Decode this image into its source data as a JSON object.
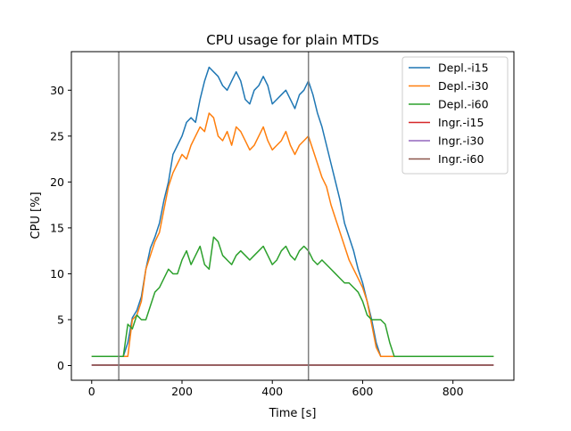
{
  "chart_data": {
    "type": "line",
    "title": "CPU usage for plain MTDs",
    "xlabel": "Time [s]",
    "ylabel": "CPU [%]",
    "xlim": [
      -45,
      935
    ],
    "ylim": [
      -1.6,
      34.2
    ],
    "xticks": [
      0,
      200,
      400,
      600,
      800
    ],
    "yticks": [
      0,
      5,
      10,
      15,
      20,
      25,
      30
    ],
    "xtick_labels": [
      "0",
      "200",
      "400",
      "600",
      "800"
    ],
    "ytick_labels": [
      "0",
      "5",
      "10",
      "15",
      "20",
      "25",
      "30"
    ],
    "vertical_lines": [
      60,
      480
    ],
    "vertical_line_color": "#808080",
    "grid": false,
    "legend_position": "top-right",
    "x": [
      0,
      10,
      20,
      30,
      40,
      50,
      60,
      70,
      80,
      90,
      100,
      110,
      120,
      130,
      140,
      150,
      160,
      170,
      180,
      190,
      200,
      210,
      220,
      230,
      240,
      250,
      260,
      270,
      280,
      290,
      300,
      310,
      320,
      330,
      340,
      350,
      360,
      370,
      380,
      390,
      400,
      410,
      420,
      430,
      440,
      450,
      460,
      470,
      480,
      490,
      500,
      510,
      520,
      530,
      540,
      550,
      560,
      570,
      580,
      590,
      600,
      610,
      620,
      630,
      640,
      650,
      660,
      670,
      680,
      690,
      700,
      710,
      720,
      730,
      740,
      750,
      760,
      770,
      780,
      790,
      800,
      810,
      820,
      830,
      840,
      850,
      860,
      870,
      880,
      890
    ],
    "series": [
      {
        "name": "Depl.-i15",
        "color": "#1f77b4",
        "values": [
          1.0,
          1.0,
          1.0,
          1.0,
          1.0,
          1.0,
          1.0,
          1.0,
          2.5,
          5.2,
          6.0,
          7.5,
          10.5,
          12.8,
          14.0,
          15.5,
          18.0,
          20.0,
          23.0,
          24.0,
          25.0,
          26.5,
          27.0,
          26.5,
          29.0,
          31.0,
          32.5,
          32.0,
          31.5,
          30.5,
          30.0,
          31.0,
          32.0,
          31.0,
          29.0,
          28.5,
          30.0,
          30.5,
          31.5,
          30.5,
          28.5,
          29.0,
          29.5,
          30.0,
          29.0,
          28.0,
          29.5,
          30.0,
          31.0,
          29.5,
          27.5,
          26.0,
          24.0,
          22.0,
          20.0,
          18.0,
          15.5,
          14.0,
          12.5,
          10.5,
          9.0,
          7.0,
          5.0,
          2.5,
          1.0,
          1.0,
          1.0,
          1.0,
          1.0,
          1.0,
          1.0,
          1.0,
          1.0,
          1.0,
          1.0,
          1.0,
          1.0,
          1.0,
          1.0,
          1.0,
          1.0,
          1.0,
          1.0,
          1.0,
          1.0,
          1.0,
          1.0,
          1.0,
          1.0,
          1.0
        ]
      },
      {
        "name": "Depl.-i30",
        "color": "#ff7f0e",
        "values": [
          1.0,
          1.0,
          1.0,
          1.0,
          1.0,
          1.0,
          1.0,
          1.0,
          1.0,
          5.0,
          5.5,
          7.0,
          10.5,
          12.0,
          13.5,
          14.5,
          17.0,
          19.5,
          21.0,
          22.0,
          23.0,
          22.5,
          24.0,
          25.0,
          26.0,
          25.5,
          27.5,
          27.0,
          25.0,
          24.5,
          25.5,
          24.0,
          26.0,
          25.5,
          24.5,
          23.5,
          24.0,
          25.0,
          26.0,
          24.5,
          23.5,
          24.0,
          24.5,
          25.5,
          24.0,
          23.0,
          24.0,
          24.5,
          25.0,
          23.5,
          22.0,
          20.5,
          19.5,
          17.5,
          16.0,
          14.5,
          13.0,
          11.5,
          10.5,
          9.5,
          8.5,
          7.0,
          4.5,
          2.0,
          1.0,
          1.0,
          1.0,
          1.0,
          1.0,
          1.0,
          1.0,
          1.0,
          1.0,
          1.0,
          1.0,
          1.0,
          1.0,
          1.0,
          1.0,
          1.0,
          1.0,
          1.0,
          1.0,
          1.0,
          1.0,
          1.0,
          1.0,
          1.0,
          1.0,
          1.0
        ]
      },
      {
        "name": "Depl.-i60",
        "color": "#2ca02c",
        "values": [
          1.0,
          1.0,
          1.0,
          1.0,
          1.0,
          1.0,
          1.0,
          1.0,
          4.5,
          4.0,
          5.5,
          5.0,
          5.0,
          6.5,
          8.0,
          8.5,
          9.5,
          10.5,
          10.0,
          10.0,
          11.5,
          12.5,
          11.0,
          12.0,
          13.0,
          11.0,
          10.5,
          14.0,
          13.5,
          12.0,
          11.5,
          11.0,
          12.0,
          12.5,
          12.0,
          11.5,
          12.0,
          12.5,
          13.0,
          12.0,
          11.0,
          11.5,
          12.5,
          13.0,
          12.0,
          11.5,
          12.5,
          13.0,
          12.5,
          11.5,
          11.0,
          11.5,
          11.0,
          10.5,
          10.0,
          9.5,
          9.0,
          9.0,
          8.5,
          8.0,
          7.0,
          5.5,
          5.0,
          5.0,
          5.0,
          4.5,
          2.5,
          1.0,
          1.0,
          1.0,
          1.0,
          1.0,
          1.0,
          1.0,
          1.0,
          1.0,
          1.0,
          1.0,
          1.0,
          1.0,
          1.0,
          1.0,
          1.0,
          1.0,
          1.0,
          1.0,
          1.0,
          1.0,
          1.0,
          1.0
        ]
      },
      {
        "name": "Ingr.-i15",
        "color": "#d62728",
        "values": [
          0.05,
          0.05,
          0.05,
          0.05,
          0.05,
          0.05,
          0.05,
          0.05,
          0.05,
          0.05,
          0.05,
          0.05,
          0.05,
          0.05,
          0.05,
          0.05,
          0.05,
          0.05,
          0.05,
          0.05,
          0.05,
          0.05,
          0.05,
          0.05,
          0.05,
          0.05,
          0.05,
          0.05,
          0.05,
          0.05,
          0.05,
          0.05,
          0.05,
          0.05,
          0.05,
          0.05,
          0.05,
          0.05,
          0.05,
          0.05,
          0.05,
          0.05,
          0.05,
          0.05,
          0.05,
          0.05,
          0.05,
          0.05,
          0.05,
          0.05,
          0.05,
          0.05,
          0.05,
          0.05,
          0.05,
          0.05,
          0.05,
          0.05,
          0.05,
          0.05,
          0.05,
          0.05,
          0.05,
          0.05,
          0.05,
          0.05,
          0.05,
          0.05,
          0.05,
          0.05,
          0.05,
          0.05,
          0.05,
          0.05,
          0.05,
          0.05,
          0.05,
          0.05,
          0.05,
          0.05,
          0.05,
          0.05,
          0.05,
          0.05,
          0.05,
          0.05,
          0.05,
          0.05,
          0.05,
          0.05
        ]
      },
      {
        "name": "Ingr.-i30",
        "color": "#9467bd",
        "values": [
          0.05,
          0.05,
          0.05,
          0.05,
          0.05,
          0.05,
          0.05,
          0.05,
          0.05,
          0.05,
          0.05,
          0.05,
          0.05,
          0.05,
          0.05,
          0.05,
          0.05,
          0.05,
          0.05,
          0.05,
          0.05,
          0.05,
          0.05,
          0.05,
          0.05,
          0.05,
          0.05,
          0.05,
          0.05,
          0.05,
          0.05,
          0.05,
          0.05,
          0.05,
          0.05,
          0.05,
          0.05,
          0.05,
          0.05,
          0.05,
          0.05,
          0.05,
          0.05,
          0.05,
          0.05,
          0.05,
          0.05,
          0.05,
          0.05,
          0.05,
          0.05,
          0.05,
          0.05,
          0.05,
          0.05,
          0.05,
          0.05,
          0.05,
          0.05,
          0.05,
          0.05,
          0.05,
          0.05,
          0.05,
          0.05,
          0.05,
          0.05,
          0.05,
          0.05,
          0.05,
          0.05,
          0.05,
          0.05,
          0.05,
          0.05,
          0.05,
          0.05,
          0.05,
          0.05,
          0.05,
          0.05,
          0.05,
          0.05,
          0.05,
          0.05,
          0.05,
          0.05,
          0.05,
          0.05,
          0.05
        ]
      },
      {
        "name": "Ingr.-i60",
        "color": "#8c564b",
        "values": [
          0.05,
          0.05,
          0.05,
          0.05,
          0.05,
          0.05,
          0.05,
          0.05,
          0.05,
          0.05,
          0.05,
          0.05,
          0.05,
          0.05,
          0.05,
          0.05,
          0.05,
          0.05,
          0.05,
          0.05,
          0.05,
          0.05,
          0.05,
          0.05,
          0.05,
          0.05,
          0.05,
          0.05,
          0.05,
          0.05,
          0.05,
          0.05,
          0.05,
          0.05,
          0.05,
          0.05,
          0.05,
          0.05,
          0.05,
          0.05,
          0.05,
          0.05,
          0.05,
          0.05,
          0.05,
          0.05,
          0.05,
          0.05,
          0.05,
          0.05,
          0.05,
          0.05,
          0.05,
          0.05,
          0.05,
          0.05,
          0.05,
          0.05,
          0.05,
          0.05,
          0.05,
          0.05,
          0.05,
          0.05,
          0.05,
          0.05,
          0.05,
          0.05,
          0.05,
          0.05,
          0.05,
          0.05,
          0.05,
          0.05,
          0.05,
          0.05,
          0.05,
          0.05,
          0.05,
          0.05,
          0.05,
          0.05,
          0.05,
          0.05,
          0.05,
          0.05,
          0.05,
          0.05,
          0.05,
          0.05
        ]
      }
    ]
  }
}
